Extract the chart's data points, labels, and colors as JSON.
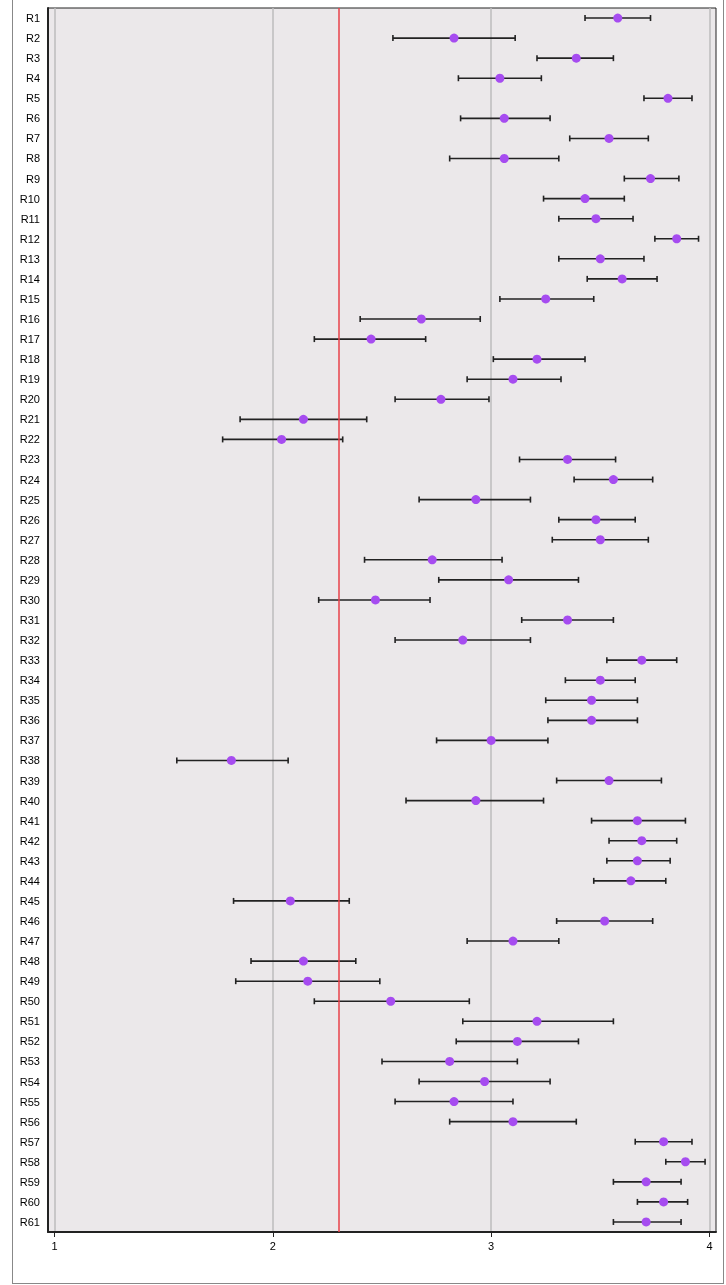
{
  "chart_data": {
    "type": "scatter",
    "orientation": "horizontal",
    "categories": [
      "R1",
      "R2",
      "R3",
      "R4",
      "R5",
      "R6",
      "R7",
      "R8",
      "R9",
      "R10",
      "R11",
      "R12",
      "R13",
      "R14",
      "R15",
      "R16",
      "R17",
      "R18",
      "R19",
      "R20",
      "R21",
      "R22",
      "R23",
      "R24",
      "R25",
      "R26",
      "R27",
      "R28",
      "R29",
      "R30",
      "R31",
      "R32",
      "R33",
      "R34",
      "R35",
      "R36",
      "R37",
      "R38",
      "R39",
      "R40",
      "R41",
      "R42",
      "R43",
      "R44",
      "R45",
      "R46",
      "R47",
      "R48",
      "R49",
      "R50",
      "R51",
      "R52",
      "R53",
      "R54",
      "R55",
      "R56",
      "R57",
      "R58",
      "R59",
      "R60",
      "R61"
    ],
    "series": [
      {
        "color": "#a64cf0",
        "values": [
          3.58,
          2.83,
          3.39,
          3.04,
          3.81,
          3.06,
          3.54,
          3.06,
          3.73,
          3.43,
          3.48,
          3.85,
          3.5,
          3.6,
          3.25,
          2.68,
          2.45,
          3.21,
          3.1,
          2.77,
          2.14,
          2.04,
          3.35,
          3.56,
          2.93,
          3.48,
          3.5,
          2.73,
          3.08,
          2.47,
          3.35,
          2.87,
          3.69,
          3.5,
          3.46,
          3.46,
          3.0,
          1.81,
          3.54,
          2.93,
          3.67,
          3.69,
          3.67,
          3.64,
          2.08,
          3.52,
          3.1,
          2.14,
          2.16,
          2.54,
          3.21,
          3.12,
          2.81,
          2.97,
          2.83,
          3.1,
          3.79,
          3.89,
          3.71,
          3.79,
          3.71
        ],
        "errors": [
          [
            3.43,
            3.73
          ],
          [
            2.55,
            3.11
          ],
          [
            3.21,
            3.56
          ],
          [
            2.85,
            3.23
          ],
          [
            3.7,
            3.92
          ],
          [
            2.86,
            3.27
          ],
          [
            3.36,
            3.72
          ],
          [
            2.81,
            3.31
          ],
          [
            3.61,
            3.86
          ],
          [
            3.24,
            3.61
          ],
          [
            3.31,
            3.65
          ],
          [
            3.75,
            3.95
          ],
          [
            3.31,
            3.7
          ],
          [
            3.44,
            3.76
          ],
          [
            3.04,
            3.47
          ],
          [
            2.4,
            2.95
          ],
          [
            2.19,
            2.7
          ],
          [
            3.01,
            3.43
          ],
          [
            2.89,
            3.32
          ],
          [
            2.56,
            2.99
          ],
          [
            1.85,
            2.43
          ],
          [
            1.77,
            2.32
          ],
          [
            3.13,
            3.57
          ],
          [
            3.38,
            3.74
          ],
          [
            2.67,
            3.18
          ],
          [
            3.31,
            3.66
          ],
          [
            3.28,
            3.72
          ],
          [
            2.42,
            3.05
          ],
          [
            2.76,
            3.4
          ],
          [
            2.21,
            2.72
          ],
          [
            3.14,
            3.56
          ],
          [
            2.56,
            3.18
          ],
          [
            3.53,
            3.85
          ],
          [
            3.34,
            3.66
          ],
          [
            3.25,
            3.67
          ],
          [
            3.26,
            3.67
          ],
          [
            2.75,
            3.26
          ],
          [
            1.56,
            2.07
          ],
          [
            3.3,
            3.78
          ],
          [
            2.61,
            3.24
          ],
          [
            3.46,
            3.89
          ],
          [
            3.54,
            3.85
          ],
          [
            3.53,
            3.82
          ],
          [
            3.47,
            3.8
          ],
          [
            1.82,
            2.35
          ],
          [
            3.3,
            3.74
          ],
          [
            2.89,
            3.31
          ],
          [
            1.9,
            2.38
          ],
          [
            1.83,
            2.49
          ],
          [
            2.19,
            2.9
          ],
          [
            2.87,
            3.56
          ],
          [
            2.84,
            3.4
          ],
          [
            2.5,
            3.12
          ],
          [
            2.67,
            3.27
          ],
          [
            2.56,
            3.1
          ],
          [
            2.81,
            3.39
          ],
          [
            3.66,
            3.92
          ],
          [
            3.8,
            3.98
          ],
          [
            3.56,
            3.87
          ],
          [
            3.67,
            3.9
          ],
          [
            3.56,
            3.87
          ]
        ]
      }
    ],
    "xlim": [
      0.97,
      4.03
    ],
    "xticks": [
      1,
      2,
      3,
      4
    ],
    "ref_lines": [
      {
        "axis": "x",
        "value": 2.3,
        "color": "#e8424a"
      }
    ],
    "grid": "x",
    "marker": "circle"
  }
}
